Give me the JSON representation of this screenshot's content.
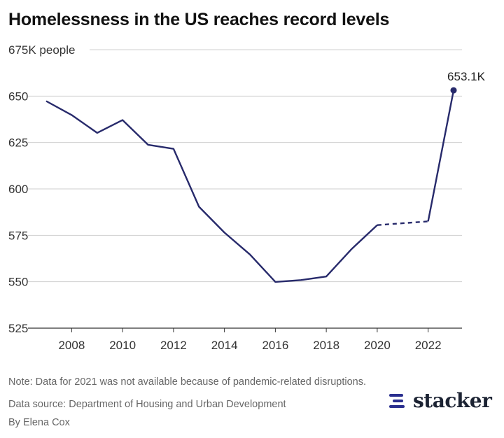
{
  "title": "Homelessness in the US reaches record levels",
  "chart_data": {
    "type": "line",
    "title": "Homelessness in the US reaches record levels",
    "ylabel": "",
    "y_top_tick_label": "675K people",
    "xlabel": "",
    "ylim": [
      525,
      675
    ],
    "xlim": [
      2007,
      2023
    ],
    "y_ticks": [
      525,
      550,
      575,
      600,
      625,
      650,
      675
    ],
    "x_ticks": [
      2008,
      2010,
      2012,
      2014,
      2016,
      2018,
      2020,
      2022
    ],
    "grid": true,
    "series": [
      {
        "color": "#272a6b",
        "points": [
          {
            "x": 2007,
            "y": 647.3
          },
          {
            "x": 2008,
            "y": 639.8
          },
          {
            "x": 2009,
            "y": 630.2
          },
          {
            "x": 2010,
            "y": 637.1
          },
          {
            "x": 2011,
            "y": 623.8
          },
          {
            "x": 2012,
            "y": 621.6
          },
          {
            "x": 2013,
            "y": 590.4
          },
          {
            "x": 2014,
            "y": 576.5
          },
          {
            "x": 2015,
            "y": 564.7
          },
          {
            "x": 2016,
            "y": 549.9
          },
          {
            "x": 2017,
            "y": 550.9
          },
          {
            "x": 2018,
            "y": 552.8
          },
          {
            "x": 2019,
            "y": 567.7
          },
          {
            "x": 2020,
            "y": 580.5
          },
          {
            "x": 2022,
            "y": 582.5
          },
          {
            "x": 2023,
            "y": 653.1
          }
        ],
        "dashed_gap": {
          "from": 2020,
          "to": 2022
        }
      }
    ],
    "annotations": [
      {
        "x": 2023,
        "y": 653.1,
        "text": "653.1K"
      }
    ]
  },
  "footer": {
    "note": "Note: Data for 2021 was not available because of pandemic-related disruptions.",
    "source": "Data source: Department of Housing and Urban Development",
    "byline": "By Elena Cox"
  },
  "brand": {
    "name": "stacker",
    "icon": "stacker-logo-icon",
    "color": "#2a2f8f"
  }
}
